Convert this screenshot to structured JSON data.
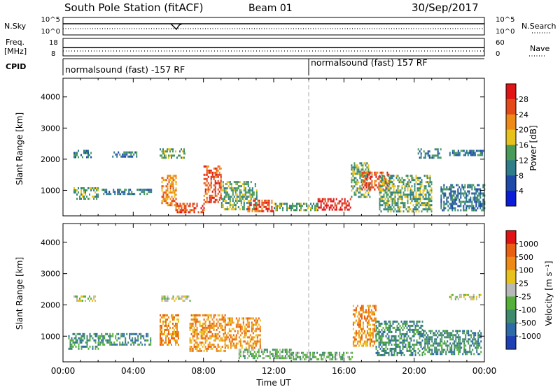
{
  "header": {
    "title": "South Pole Station (fitACF)",
    "beam": "Beam 01",
    "date": "30/Sep/2017"
  },
  "top_panels": {
    "nsky_label": "N.Sky",
    "nsky_ticks": [
      "10^5",
      "10^0"
    ],
    "nsearch_label": "N.Search",
    "nsearch_ticks": [
      "10^5",
      "10^0"
    ],
    "freq_label": "Freq.",
    "freq_unit": "[MHz]",
    "freq_ticks": [
      "18",
      "8"
    ],
    "nave_label": "Nave",
    "nave_ticks": [
      "60",
      "0"
    ],
    "cpid_label": "CPID",
    "cpid_segments": [
      {
        "label": "normalsound (fast) -157 RF",
        "start_hour": 0,
        "end_hour": 14
      },
      {
        "label": "normalsound (fast) 157 RF",
        "start_hour": 14,
        "end_hour": 24
      }
    ]
  },
  "colors": {
    "power_scale": [
      "#0a1cd8",
      "#1f4aa7",
      "#2f7d8a",
      "#4a9a5a",
      "#e8c21c",
      "#ee8a18",
      "#e4491a",
      "#e01414"
    ],
    "velocity_scale": [
      "#1e40b4",
      "#2f6aa8",
      "#3f8a6c",
      "#55b03a",
      "#b8b8b8",
      "#e8c21c",
      "#ee8a18",
      "#e86012",
      "#e01414"
    ]
  },
  "chart_data": [
    {
      "type": "heatmap",
      "panel": "power",
      "ylabel": "Slant Range [km]",
      "ylim": [
        180,
        4600
      ],
      "yticks": [
        "4000",
        "3000",
        "2000",
        "1000"
      ],
      "xlim": [
        0,
        24
      ],
      "xticks": [
        "00:00",
        "04:00",
        "08:00",
        "12:00",
        "16:00",
        "20:00",
        "00:00"
      ],
      "colorbar": {
        "label": "Power [dB]",
        "ticks": [
          "28",
          "24",
          "20",
          "16",
          "12",
          "8",
          "4"
        ]
      },
      "echo_regions": [
        {
          "t": [
            0.6,
            1.6
          ],
          "r": [
            2050,
            2300
          ],
          "level": 2
        },
        {
          "t": [
            0.6,
            2.0
          ],
          "r": [
            700,
            1100
          ],
          "level": 3
        },
        {
          "t": [
            2.2,
            5.0
          ],
          "r": [
            850,
            1050
          ],
          "level": 2
        },
        {
          "t": [
            2.8,
            4.2
          ],
          "r": [
            2100,
            2250
          ],
          "level": 2
        },
        {
          "t": [
            5.5,
            7.0
          ],
          "r": [
            2050,
            2350
          ],
          "level": 3
        },
        {
          "t": [
            5.6,
            6.4
          ],
          "r": [
            500,
            1500
          ],
          "level": 5
        },
        {
          "t": [
            6.4,
            8.0
          ],
          "r": [
            300,
            600
          ],
          "level": 6
        },
        {
          "t": [
            8.0,
            9.0
          ],
          "r": [
            600,
            1800
          ],
          "level": 6
        },
        {
          "t": [
            9.0,
            11.0
          ],
          "r": [
            400,
            1300
          ],
          "level": 3
        },
        {
          "t": [
            10.5,
            12.0
          ],
          "r": [
            300,
            700
          ],
          "level": 6
        },
        {
          "t": [
            12.0,
            14.5
          ],
          "r": [
            350,
            600
          ],
          "level": 3
        },
        {
          "t": [
            14.5,
            16.4
          ],
          "r": [
            350,
            750
          ],
          "level": 7
        },
        {
          "t": [
            16.4,
            17.5
          ],
          "r": [
            800,
            1900
          ],
          "level": 3
        },
        {
          "t": [
            17.0,
            18.6
          ],
          "r": [
            1000,
            1600
          ],
          "level": 6
        },
        {
          "t": [
            18.0,
            21.0
          ],
          "r": [
            350,
            1500
          ],
          "level": 3
        },
        {
          "t": [
            20.2,
            21.5
          ],
          "r": [
            2050,
            2350
          ],
          "level": 2
        },
        {
          "t": [
            22.0,
            24.0
          ],
          "r": [
            2100,
            2300
          ],
          "level": 2
        },
        {
          "t": [
            21.5,
            24.0
          ],
          "r": [
            350,
            1200
          ],
          "level": 2
        }
      ]
    },
    {
      "type": "heatmap",
      "panel": "velocity",
      "ylabel": "Slant Range [km]",
      "ylim": [
        180,
        4600
      ],
      "yticks": [
        "4000",
        "3000",
        "2000",
        "1000"
      ],
      "xlim": [
        0,
        24
      ],
      "xticks": [
        "00:00",
        "04:00",
        "08:00",
        "12:00",
        "16:00",
        "20:00",
        "00:00"
      ],
      "xlabel": "Time UT",
      "colorbar": {
        "label": "Velocity [m s⁻¹]",
        "ticks": [
          "1000",
          "500",
          "100",
          "25",
          "-25",
          "-100",
          "-500",
          "-1000"
        ]
      },
      "echo_regions": [
        {
          "t": [
            0.3,
            2.0
          ],
          "r": [
            600,
            1100
          ],
          "level": 2
        },
        {
          "t": [
            0.6,
            1.8
          ],
          "r": [
            2100,
            2300
          ],
          "level": 4
        },
        {
          "t": [
            2.0,
            5.0
          ],
          "r": [
            700,
            1100
          ],
          "level": 2
        },
        {
          "t": [
            5.6,
            7.2
          ],
          "r": [
            2100,
            2300
          ],
          "level": 4
        },
        {
          "t": [
            5.5,
            6.6
          ],
          "r": [
            700,
            1700
          ],
          "level": 6
        },
        {
          "t": [
            7.2,
            9.2
          ],
          "r": [
            500,
            1700
          ],
          "level": 6
        },
        {
          "t": [
            9.2,
            11.2
          ],
          "r": [
            600,
            1600
          ],
          "level": 6
        },
        {
          "t": [
            10.0,
            13.0
          ],
          "r": [
            300,
            600
          ],
          "level": 3
        },
        {
          "t": [
            13.0,
            16.5
          ],
          "r": [
            250,
            500
          ],
          "level": 3
        },
        {
          "t": [
            16.5,
            17.8
          ],
          "r": [
            700,
            2000
          ],
          "level": 6
        },
        {
          "t": [
            17.8,
            20.5
          ],
          "r": [
            400,
            1500
          ],
          "level": 2
        },
        {
          "t": [
            20.5,
            23.8
          ],
          "r": [
            400,
            1200
          ],
          "level": 2
        },
        {
          "t": [
            22.0,
            23.8
          ],
          "r": [
            2150,
            2350
          ],
          "level": 4
        }
      ]
    }
  ]
}
